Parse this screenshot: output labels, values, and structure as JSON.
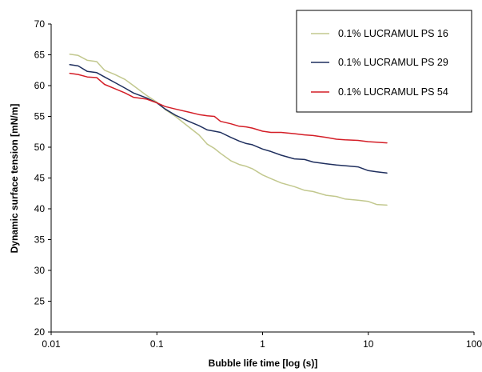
{
  "chart_data": {
    "type": "line",
    "title": "",
    "xlabel": "Bubble life time [log (s)]",
    "ylabel": "Dynamic surface tension [mN/m]",
    "x_scale": "log",
    "xlim": [
      0.01,
      100
    ],
    "ylim": [
      20,
      70
    ],
    "x_ticks": [
      0.01,
      0.1,
      1,
      10,
      100
    ],
    "x_tick_labels": [
      "0.01",
      "0.1",
      "1",
      "10",
      "100"
    ],
    "y_ticks": [
      20,
      25,
      30,
      35,
      40,
      45,
      50,
      55,
      60,
      65,
      70
    ],
    "y_tick_labels": [
      "20",
      "25",
      "30",
      "35",
      "40",
      "45",
      "50",
      "55",
      "60",
      "65",
      "70"
    ],
    "grid": false,
    "legend_position": "top-right",
    "series": [
      {
        "name": "0.1% LUCRAMUL PS 16",
        "color": "#c2c88e",
        "x": [
          0.015,
          0.018,
          0.022,
          0.027,
          0.032,
          0.04,
          0.05,
          0.06,
          0.08,
          0.1,
          0.12,
          0.15,
          0.2,
          0.25,
          0.3,
          0.35,
          0.4,
          0.5,
          0.6,
          0.7,
          0.8,
          1.0,
          1.2,
          1.5,
          2.0,
          2.5,
          3.0,
          4.0,
          5.0,
          6.0,
          8.0,
          10.0,
          12.0,
          15.0
        ],
        "y": [
          65.1,
          64.9,
          64.1,
          63.9,
          62.5,
          61.8,
          61.0,
          60.0,
          58.4,
          57.3,
          56.1,
          55.0,
          53.3,
          52.0,
          50.5,
          49.8,
          49.0,
          47.8,
          47.2,
          46.9,
          46.5,
          45.5,
          44.9,
          44.2,
          43.6,
          43.0,
          42.8,
          42.2,
          42.0,
          41.6,
          41.4,
          41.2,
          40.7,
          40.6
        ]
      },
      {
        "name": "0.1% LUCRAMUL PS 29",
        "color": "#1f2f5e",
        "x": [
          0.015,
          0.018,
          0.022,
          0.027,
          0.032,
          0.04,
          0.05,
          0.06,
          0.08,
          0.1,
          0.12,
          0.15,
          0.2,
          0.25,
          0.3,
          0.35,
          0.4,
          0.5,
          0.6,
          0.7,
          0.8,
          1.0,
          1.2,
          1.5,
          2.0,
          2.5,
          3.0,
          4.0,
          5.0,
          6.0,
          8.0,
          10.0,
          12.0,
          15.0
        ],
        "y": [
          63.4,
          63.2,
          62.3,
          62.1,
          61.4,
          60.5,
          59.6,
          58.8,
          58.0,
          57.2,
          56.2,
          55.2,
          54.2,
          53.5,
          52.8,
          52.6,
          52.4,
          51.6,
          51.0,
          50.6,
          50.4,
          49.7,
          49.3,
          48.7,
          48.1,
          48.0,
          47.6,
          47.3,
          47.1,
          47.0,
          46.8,
          46.2,
          46.0,
          45.8
        ]
      },
      {
        "name": "0.1% LUCRAMUL PS 54",
        "color": "#d41e27",
        "x": [
          0.015,
          0.018,
          0.022,
          0.027,
          0.032,
          0.04,
          0.05,
          0.06,
          0.08,
          0.1,
          0.12,
          0.15,
          0.2,
          0.25,
          0.3,
          0.35,
          0.4,
          0.5,
          0.6,
          0.7,
          0.8,
          1.0,
          1.2,
          1.5,
          2.0,
          2.5,
          3.0,
          4.0,
          5.0,
          6.0,
          8.0,
          10.0,
          12.0,
          15.0
        ],
        "y": [
          62.0,
          61.8,
          61.4,
          61.3,
          60.2,
          59.5,
          58.8,
          58.1,
          57.8,
          57.2,
          56.6,
          56.2,
          55.7,
          55.3,
          55.1,
          55.0,
          54.2,
          53.8,
          53.4,
          53.3,
          53.1,
          52.6,
          52.4,
          52.4,
          52.2,
          52.0,
          51.9,
          51.6,
          51.3,
          51.2,
          51.1,
          50.9,
          50.8,
          50.7
        ]
      }
    ]
  }
}
